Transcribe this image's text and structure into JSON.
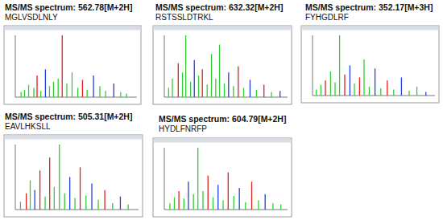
{
  "chart_data": [
    {
      "type": "spectrum",
      "title": "MS/MS spectrum: 562.78[M+2H]",
      "subtitle": "MGLVSDLNLY",
      "x": [
        150,
        180,
        215,
        260,
        288,
        320,
        360,
        395,
        430,
        470,
        505,
        545,
        590,
        640,
        680,
        720,
        775,
        830,
        880,
        950,
        1010,
        1060
      ],
      "values": [
        8,
        12,
        20,
        15,
        35,
        10,
        45,
        18,
        25,
        30,
        100,
        22,
        40,
        15,
        28,
        12,
        35,
        18,
        10,
        22,
        8,
        6
      ],
      "colors": [
        "#33cc33",
        "#33cc33",
        "#33cc33",
        "#33cc33",
        "#e02020",
        "#33cc33",
        "#2040e0",
        "#33cc33",
        "#33cc33",
        "#33cc33",
        "#e02020",
        "#33cc33",
        "#33cc33",
        "#33cc33",
        "#e02020",
        "#33cc33",
        "#2040e0",
        "#33cc33",
        "#33cc33",
        "#2040e0",
        "#33cc33",
        "#33cc33"
      ],
      "xlim": [
        100,
        1150
      ],
      "ylim": [
        0,
        100
      ],
      "tick_labels": false
    },
    {
      "type": "spectrum",
      "title": "MS/MS spectrum: 632.32[M+2H]",
      "subtitle": "RSTSSLDTRKL",
      "x": [
        140,
        175,
        230,
        270,
        300,
        345,
        380,
        420,
        455,
        500,
        540,
        580,
        615,
        660,
        700,
        745,
        790,
        840,
        900,
        960,
        1030,
        1100,
        1180
      ],
      "values": [
        15,
        30,
        55,
        40,
        100,
        25,
        60,
        35,
        45,
        20,
        70,
        30,
        85,
        22,
        40,
        18,
        50,
        15,
        28,
        12,
        20,
        8,
        10
      ],
      "colors": [
        "#33cc33",
        "#33cc33",
        "#e02020",
        "#33cc33",
        "#33cc33",
        "#33cc33",
        "#2040e0",
        "#33cc33",
        "#e02020",
        "#33cc33",
        "#33cc33",
        "#33cc33",
        "#33cc33",
        "#33cc33",
        "#2040e0",
        "#33cc33",
        "#e02020",
        "#33cc33",
        "#2040e0",
        "#33cc33",
        "#e02020",
        "#33cc33",
        "#2040e0"
      ],
      "xlim": [
        100,
        1250
      ],
      "ylim": [
        0,
        100
      ],
      "tick_labels": false
    },
    {
      "type": "spectrum",
      "title": "MS/MS spectrum: 352.17[M+3H]",
      "subtitle": "FYHGDLRF",
      "x": [
        130,
        165,
        200,
        240,
        275,
        310,
        350,
        390,
        425,
        465,
        500,
        540,
        585,
        630,
        680,
        730,
        790,
        850,
        910,
        980
      ],
      "values": [
        10,
        18,
        25,
        40,
        22,
        100,
        35,
        50,
        20,
        30,
        60,
        15,
        45,
        12,
        25,
        10,
        30,
        8,
        15,
        6
      ],
      "colors": [
        "#33cc33",
        "#33cc33",
        "#e02020",
        "#33cc33",
        "#33cc33",
        "#33cc33",
        "#e02020",
        "#2040e0",
        "#33cc33",
        "#e02020",
        "#33cc33",
        "#33cc33",
        "#2040e0",
        "#33cc33",
        "#e02020",
        "#33cc33",
        "#2040e0",
        "#33cc33",
        "#33cc33",
        "#2040e0"
      ],
      "xlim": [
        100,
        1050
      ],
      "ylim": [
        0,
        100
      ],
      "tick_labels": false
    },
    {
      "type": "spectrum",
      "title": "MS/MS spectrum: 505.31[M+2H]",
      "subtitle": "EAVLHKSLL",
      "x": [
        140,
        185,
        215,
        250,
        290,
        330,
        365,
        400,
        440,
        480,
        520,
        560,
        600,
        645,
        690,
        740,
        790,
        850,
        910,
        970
      ],
      "values": [
        12,
        25,
        45,
        30,
        60,
        20,
        80,
        35,
        100,
        25,
        50,
        18,
        65,
        22,
        40,
        15,
        30,
        10,
        20,
        8
      ],
      "colors": [
        "#33cc33",
        "#e02020",
        "#33cc33",
        "#2040e0",
        "#e02020",
        "#33cc33",
        "#e02020",
        "#33cc33",
        "#33cc33",
        "#33cc33",
        "#2040e0",
        "#33cc33",
        "#e02020",
        "#33cc33",
        "#2040e0",
        "#33cc33",
        "#e02020",
        "#33cc33",
        "#2040e0",
        "#33cc33"
      ],
      "xlim": [
        100,
        1050
      ],
      "ylim": [
        0,
        100
      ],
      "tick_labels": false
    },
    {
      "type": "spectrum",
      "title": "MS/MS spectrum: 604.79[M+2H]",
      "subtitle": "HYDLFNRFP",
      "x": [
        150,
        190,
        230,
        275,
        315,
        360,
        400,
        445,
        490,
        535,
        580,
        625,
        670,
        720,
        770,
        825,
        880,
        940,
        1000,
        1070,
        1140
      ],
      "values": [
        10,
        20,
        30,
        18,
        45,
        25,
        100,
        30,
        55,
        20,
        40,
        15,
        60,
        22,
        35,
        12,
        45,
        15,
        25,
        10,
        8
      ],
      "colors": [
        "#33cc33",
        "#33cc33",
        "#e02020",
        "#33cc33",
        "#2040e0",
        "#33cc33",
        "#33cc33",
        "#33cc33",
        "#e02020",
        "#33cc33",
        "#2040e0",
        "#33cc33",
        "#e02020",
        "#33cc33",
        "#2040e0",
        "#33cc33",
        "#e02020",
        "#33cc33",
        "#2040e0",
        "#33cc33",
        "#33cc33"
      ],
      "xlim": [
        100,
        1200
      ],
      "ylim": [
        0,
        100
      ],
      "tick_labels": false
    }
  ]
}
